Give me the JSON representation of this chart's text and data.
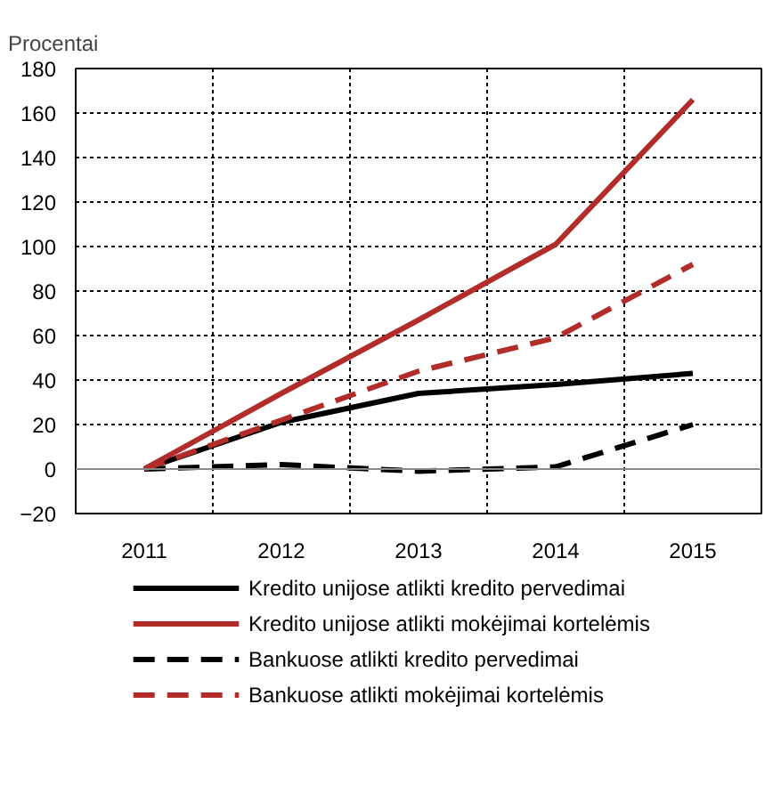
{
  "chart_data": {
    "type": "line",
    "ylabel": "Procentai",
    "categories": [
      "2011",
      "2012",
      "2013",
      "2014",
      "2015"
    ],
    "series": [
      {
        "name": "Kredito unijose atlikti kredito pervedimai",
        "color": "#000000",
        "line_style": "solid",
        "values": [
          0,
          21,
          34,
          38,
          43
        ]
      },
      {
        "name": "Kredito unijose atlikti mokėjimai kortelėmis",
        "color": "#b22d2a",
        "line_style": "solid",
        "values": [
          0,
          34,
          67,
          101,
          166
        ]
      },
      {
        "name": "Bankuose atlikti kredito pervedimai",
        "color": "#000000",
        "line_style": "dashed",
        "values": [
          0,
          2,
          -1,
          1,
          20
        ]
      },
      {
        "name": "Bankuose atlikti mokėjimai kortelėmis",
        "color": "#b22d2a",
        "line_style": "dashed",
        "values": [
          0,
          22,
          44,
          59,
          92
        ]
      }
    ],
    "ylim": [
      -20,
      180
    ],
    "yticks": [
      -20,
      0,
      20,
      40,
      60,
      80,
      100,
      120,
      140,
      160,
      180
    ],
    "grid": true,
    "legend": "bottom",
    "marker": "none",
    "ref_lines": [
      {
        "axis": "y",
        "value": 0,
        "label": null,
        "color": "#888888"
      }
    ]
  }
}
